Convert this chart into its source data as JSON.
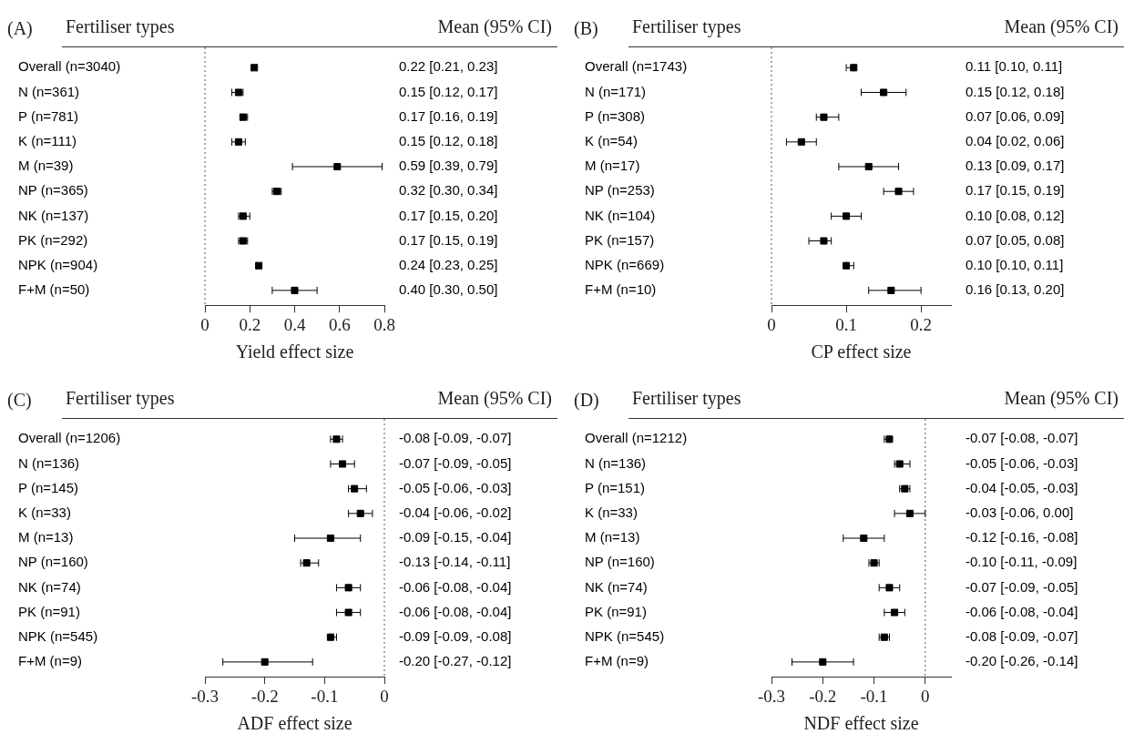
{
  "chart_data": [
    {
      "type": "scatter",
      "title": "(A)",
      "ylabel": "Fertiliser types",
      "annotations": [
        "Mean (95% CI)"
      ],
      "xlabel": "Yield effect size",
      "orientation": "horizontal",
      "marker": "square",
      "color": "#000000",
      "legend": false,
      "grid": false,
      "categories": [
        "Overall (n=3040)",
        "N (n=361)",
        "P (n=781)",
        "K (n=111)",
        "M (n=39)",
        "NP (n=365)",
        "NK (n=137)",
        "PK (n=292)",
        "NPK (n=904)",
        "F+M (n=50)"
      ],
      "values": [
        0.22,
        0.15,
        0.17,
        0.15,
        0.59,
        0.32,
        0.17,
        0.17,
        0.24,
        0.4
      ],
      "errors": [
        [
          0.21,
          0.23
        ],
        [
          0.12,
          0.17
        ],
        [
          0.16,
          0.19
        ],
        [
          0.12,
          0.18
        ],
        [
          0.39,
          0.79
        ],
        [
          0.3,
          0.34
        ],
        [
          0.15,
          0.2
        ],
        [
          0.15,
          0.19
        ],
        [
          0.23,
          0.25
        ],
        [
          0.3,
          0.5
        ]
      ],
      "value_labels": [
        "0.22 [0.21, 0.23]",
        "0.15 [0.12, 0.17]",
        "0.17 [0.16, 0.19]",
        "0.15 [0.12, 0.18]",
        "0.59 [0.39, 0.79]",
        "0.32 [0.30, 0.34]",
        "0.17 [0.15, 0.20]",
        "0.17 [0.15, 0.19]",
        "0.24 [0.23, 0.25]",
        "0.40 [0.30, 0.50]"
      ],
      "xlim": [
        0,
        0.8
      ],
      "xticks": [
        0,
        0.2,
        0.4,
        0.6,
        0.8
      ],
      "ref_lines": [
        {
          "axis": "x",
          "value": 0,
          "line_style": "dotted",
          "color": "#555555"
        }
      ]
    },
    {
      "type": "scatter",
      "title": "(B)",
      "ylabel": "Fertiliser types",
      "annotations": [
        "Mean (95% CI)"
      ],
      "xlabel": "CP effect size",
      "orientation": "horizontal",
      "marker": "square",
      "color": "#000000",
      "legend": false,
      "grid": false,
      "categories": [
        "Overall (n=1743)",
        "N (n=171)",
        "P (n=308)",
        "K (n=54)",
        "M (n=17)",
        "NP (n=253)",
        "NK (n=104)",
        "PK (n=157)",
        "NPK (n=669)",
        "F+M (n=10)"
      ],
      "values": [
        0.11,
        0.15,
        0.07,
        0.04,
        0.13,
        0.17,
        0.1,
        0.07,
        0.1,
        0.16
      ],
      "errors": [
        [
          0.1,
          0.11
        ],
        [
          0.12,
          0.18
        ],
        [
          0.06,
          0.09
        ],
        [
          0.02,
          0.06
        ],
        [
          0.09,
          0.17
        ],
        [
          0.15,
          0.19
        ],
        [
          0.08,
          0.12
        ],
        [
          0.05,
          0.08
        ],
        [
          0.1,
          0.11
        ],
        [
          0.13,
          0.2
        ]
      ],
      "value_labels": [
        "0.11 [0.10, 0.11]",
        "0.15 [0.12, 0.18]",
        "0.07 [0.06, 0.09]",
        "0.04 [0.02, 0.06]",
        "0.13 [0.09, 0.17]",
        "0.17 [0.15, 0.19]",
        "0.10 [0.08, 0.12]",
        "0.07 [0.05, 0.08]",
        "0.10 [0.10, 0.11]",
        "0.16 [0.13, 0.20]"
      ],
      "xlim": [
        0,
        0.24
      ],
      "xticks": [
        0,
        0.1,
        0.2
      ],
      "ref_lines": [
        {
          "axis": "x",
          "value": 0,
          "line_style": "dotted",
          "color": "#555555"
        }
      ]
    },
    {
      "type": "scatter",
      "title": "(C)",
      "ylabel": "Fertiliser types",
      "annotations": [
        "Mean (95% CI)"
      ],
      "xlabel": "ADF effect size",
      "orientation": "horizontal",
      "marker": "square",
      "color": "#000000",
      "legend": false,
      "grid": false,
      "categories": [
        "Overall (n=1206)",
        "N (n=136)",
        "P (n=145)",
        "K (n=33)",
        "M (n=13)",
        "NP (n=160)",
        "NK (n=74)",
        "PK (n=91)",
        "NPK (n=545)",
        "F+M (n=9)"
      ],
      "values": [
        -0.08,
        -0.07,
        -0.05,
        -0.04,
        -0.09,
        -0.13,
        -0.06,
        -0.06,
        -0.09,
        -0.2
      ],
      "errors": [
        [
          -0.09,
          -0.07
        ],
        [
          -0.09,
          -0.05
        ],
        [
          -0.06,
          -0.03
        ],
        [
          -0.06,
          -0.02
        ],
        [
          -0.15,
          -0.04
        ],
        [
          -0.14,
          -0.11
        ],
        [
          -0.08,
          -0.04
        ],
        [
          -0.08,
          -0.04
        ],
        [
          -0.09,
          -0.08
        ],
        [
          -0.27,
          -0.12
        ]
      ],
      "value_labels": [
        "-0.08 [-0.09, -0.07]",
        "-0.07 [-0.09, -0.05]",
        "-0.05 [-0.06, -0.03]",
        "-0.04 [-0.06, -0.02]",
        "-0.09 [-0.15, -0.04]",
        "-0.13 [-0.14, -0.11]",
        "-0.06 [-0.08, -0.04]",
        "-0.06 [-0.08, -0.04]",
        "-0.09 [-0.09, -0.08]",
        "-0.20 [-0.27, -0.12]"
      ],
      "xlim": [
        -0.3,
        0
      ],
      "xticks": [
        -0.3,
        -0.2,
        -0.1,
        0
      ],
      "ref_lines": [
        {
          "axis": "x",
          "value": 0,
          "line_style": "dotted",
          "color": "#555555"
        }
      ]
    },
    {
      "type": "scatter",
      "title": "(D)",
      "ylabel": "Fertiliser types",
      "annotations": [
        "Mean (95% CI)"
      ],
      "xlabel": "NDF effect size",
      "orientation": "horizontal",
      "marker": "square",
      "color": "#000000",
      "legend": false,
      "grid": false,
      "categories": [
        "Overall (n=1212)",
        "N (n=136)",
        "P (n=151)",
        "K (n=33)",
        "M (n=13)",
        "NP (n=160)",
        "NK (n=74)",
        "PK (n=91)",
        "NPK (n=545)",
        "F+M (n=9)"
      ],
      "values": [
        -0.07,
        -0.05,
        -0.04,
        -0.03,
        -0.12,
        -0.1,
        -0.07,
        -0.06,
        -0.08,
        -0.2
      ],
      "errors": [
        [
          -0.08,
          -0.07
        ],
        [
          -0.06,
          -0.03
        ],
        [
          -0.05,
          -0.03
        ],
        [
          -0.06,
          0.0
        ],
        [
          -0.16,
          -0.08
        ],
        [
          -0.11,
          -0.09
        ],
        [
          -0.09,
          -0.05
        ],
        [
          -0.08,
          -0.04
        ],
        [
          -0.09,
          -0.07
        ],
        [
          -0.26,
          -0.14
        ]
      ],
      "value_labels": [
        "-0.07 [-0.08, -0.07]",
        "-0.05 [-0.06, -0.03]",
        "-0.04 [-0.05, -0.03]",
        "-0.03 [-0.06, 0.00]",
        "-0.12 [-0.16, -0.08]",
        "-0.10 [-0.11, -0.09]",
        "-0.07 [-0.09, -0.05]",
        "-0.06 [-0.08, -0.04]",
        "-0.08 [-0.09, -0.07]",
        "-0.20 [-0.26, -0.14]"
      ],
      "xlim": [
        -0.3,
        0.05
      ],
      "xticks": [
        -0.3,
        -0.2,
        -0.1,
        0
      ],
      "ref_lines": [
        {
          "axis": "x",
          "value": 0,
          "line_style": "dotted",
          "color": "#555555"
        }
      ]
    }
  ]
}
